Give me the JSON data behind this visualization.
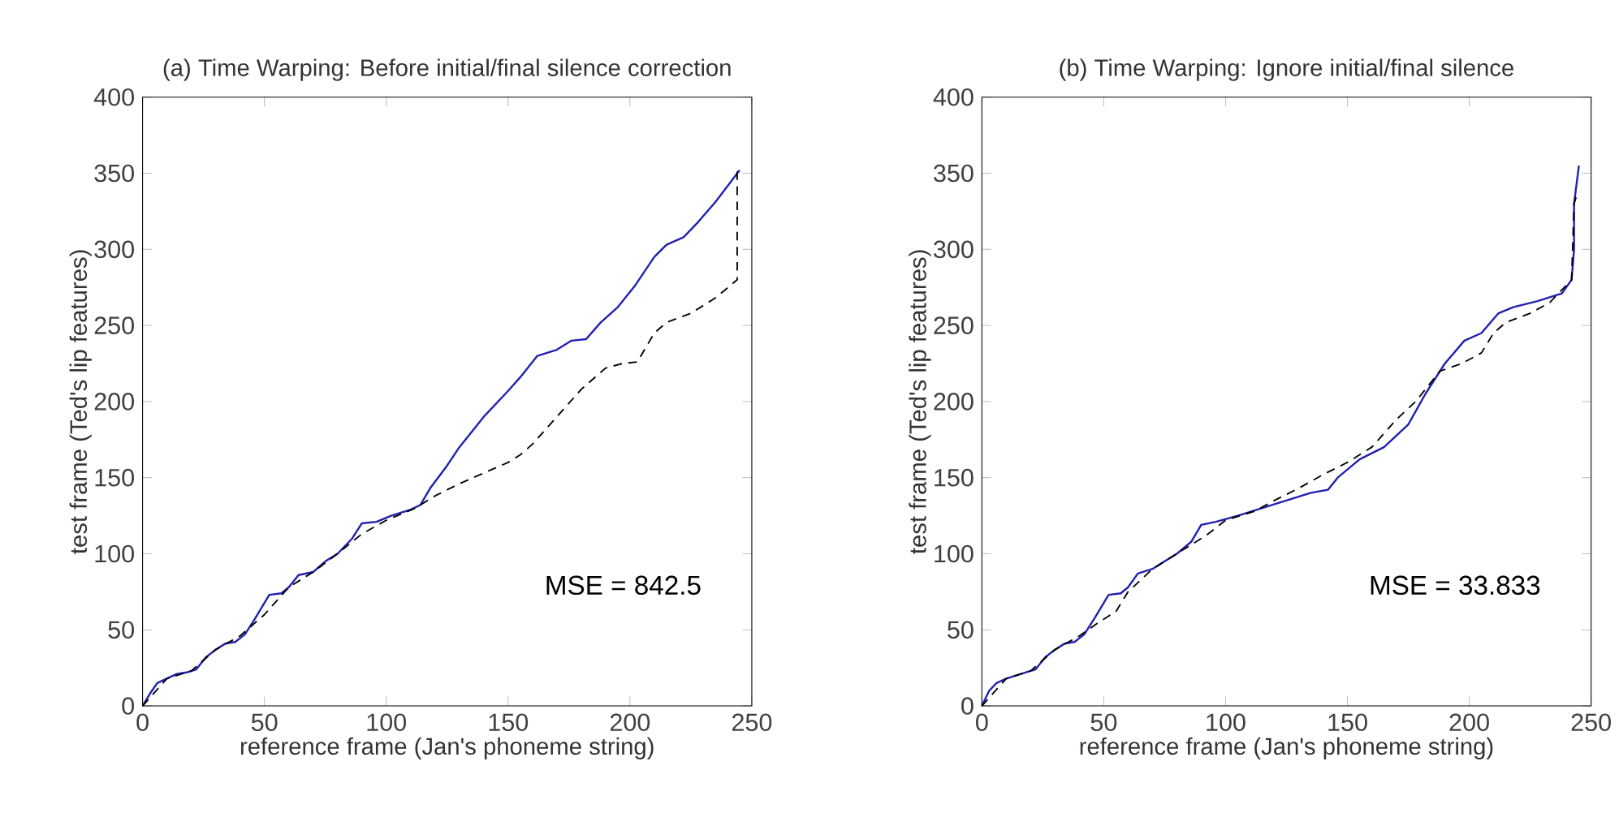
{
  "chart_data": [
    {
      "type": "line",
      "title": "(a) Time Warping: Before initial/final silence correction",
      "xlabel": "reference frame (Jan's phoneme string)",
      "ylabel": "test frame (Ted's lip features)",
      "xlim": [
        0,
        250
      ],
      "ylim": [
        0,
        400
      ],
      "xticks": [
        0,
        50,
        100,
        150,
        200,
        250
      ],
      "yticks": [
        0,
        50,
        100,
        150,
        200,
        250,
        300,
        350,
        400
      ],
      "annotations": [
        "MSE = 842.5"
      ],
      "series": [
        {
          "color": "#2020b0",
          "line_style": "solid",
          "x": [
            0,
            3,
            6,
            10,
            14,
            18,
            22,
            26,
            30,
            34,
            38,
            42,
            46,
            52,
            57,
            60,
            64,
            70,
            75,
            80,
            86,
            90,
            96,
            102,
            106,
            110,
            114,
            118,
            125,
            130,
            140,
            150,
            155,
            162,
            170,
            176,
            182,
            188,
            195,
            202,
            210,
            215,
            222,
            228,
            235,
            245
          ],
          "values": [
            0,
            8,
            15,
            18,
            21,
            22,
            24,
            32,
            37,
            41,
            42,
            47,
            57,
            73,
            74,
            78,
            86,
            88,
            95,
            100,
            110,
            120,
            121,
            125,
            127,
            129,
            132,
            143,
            158,
            170,
            190,
            207,
            216,
            230,
            234,
            240,
            241,
            252,
            262,
            276,
            295,
            303,
            308,
            318,
            331,
            352
          ]
        },
        {
          "color": "#000000",
          "line_style": "dashed",
          "x": [
            0,
            10,
            20,
            30,
            40,
            50,
            60,
            70,
            80,
            90,
            100,
            112,
            120,
            130,
            140,
            150,
            155,
            160,
            170,
            180,
            190,
            197,
            203,
            210,
            215,
            225,
            235,
            244,
            244
          ],
          "values": [
            0,
            18,
            23,
            37,
            46,
            60,
            78,
            88,
            100,
            113,
            122,
            130,
            138,
            146,
            153,
            160,
            165,
            172,
            190,
            208,
            222,
            225,
            226,
            245,
            252,
            258,
            268,
            280,
            352
          ]
        }
      ]
    },
    {
      "type": "line",
      "title": "(b) Time Warping: Ignore initial/final silence",
      "xlabel": "reference frame (Jan's phoneme string)",
      "ylabel": "test frame (Ted's lip features)",
      "xlim": [
        0,
        250
      ],
      "ylim": [
        0,
        400
      ],
      "xticks": [
        0,
        50,
        100,
        150,
        200,
        250
      ],
      "yticks": [
        0,
        50,
        100,
        150,
        200,
        250,
        300,
        350,
        400
      ],
      "annotations": [
        "MSE = 33.833"
      ],
      "series": [
        {
          "color": "#2020b0",
          "line_style": "solid",
          "x": [
            0,
            3,
            6,
            10,
            16,
            22,
            26,
            30,
            34,
            38,
            42,
            46,
            52,
            57,
            60,
            64,
            70,
            75,
            80,
            86,
            90,
            96,
            105,
            115,
            125,
            135,
            142,
            146,
            155,
            165,
            175,
            182,
            190,
            198,
            205,
            212,
            218,
            228,
            238,
            242,
            243,
            243,
            245
          ],
          "values": [
            0,
            10,
            15,
            18,
            21,
            24,
            32,
            37,
            41,
            42,
            47,
            57,
            73,
            74,
            78,
            87,
            90,
            95,
            100,
            108,
            119,
            121,
            125,
            130,
            135,
            140,
            142,
            150,
            162,
            170,
            185,
            205,
            225,
            240,
            245,
            258,
            262,
            266,
            271,
            280,
            300,
            330,
            355
          ]
        },
        {
          "color": "#000000",
          "line_style": "dashed",
          "x": [
            0,
            10,
            20,
            30,
            40,
            48,
            55,
            60,
            70,
            80,
            92,
            100,
            112,
            120,
            130,
            140,
            150,
            160,
            170,
            178,
            188,
            197,
            205,
            210,
            215,
            225,
            233,
            242,
            243,
            244
          ],
          "values": [
            0,
            18,
            23,
            37,
            46,
            55,
            62,
            75,
            90,
            100,
            112,
            122,
            128,
            135,
            143,
            152,
            160,
            170,
            188,
            200,
            220,
            225,
            232,
            245,
            252,
            258,
            265,
            280,
            330,
            335
          ]
        }
      ]
    }
  ]
}
